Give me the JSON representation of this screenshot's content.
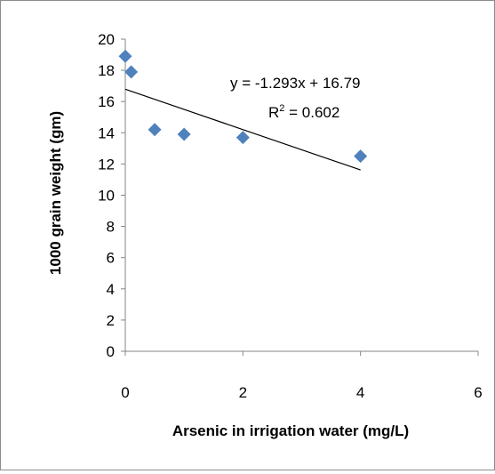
{
  "chart_data": {
    "type": "scatter",
    "xlabel": "Arsenic in irrigation water (mg/L)",
    "ylabel": "1000 grain weight (gm)",
    "xlim": [
      0,
      6
    ],
    "ylim": [
      0,
      20
    ],
    "x_ticks": [
      "0",
      "2",
      "4",
      "6"
    ],
    "y_ticks": [
      "0",
      "2",
      "4",
      "6",
      "8",
      "10",
      "12",
      "14",
      "16",
      "18",
      "20"
    ],
    "grid": false,
    "legend": "none",
    "marker_color": "#4f81bd",
    "trendline_color": "#000000",
    "series": [
      {
        "x": [
          0,
          0.1,
          0.5,
          1,
          2,
          4
        ],
        "y": [
          18.9,
          17.9,
          14.2,
          13.9,
          13.7,
          12.5
        ]
      }
    ],
    "trendline": {
      "slope": -1.293,
      "intercept": 16.79,
      "x_range": [
        0,
        4
      ]
    },
    "annotations": {
      "equation": "y = -1.293x + 16.79",
      "r_squared": "R² = 0.602"
    }
  }
}
